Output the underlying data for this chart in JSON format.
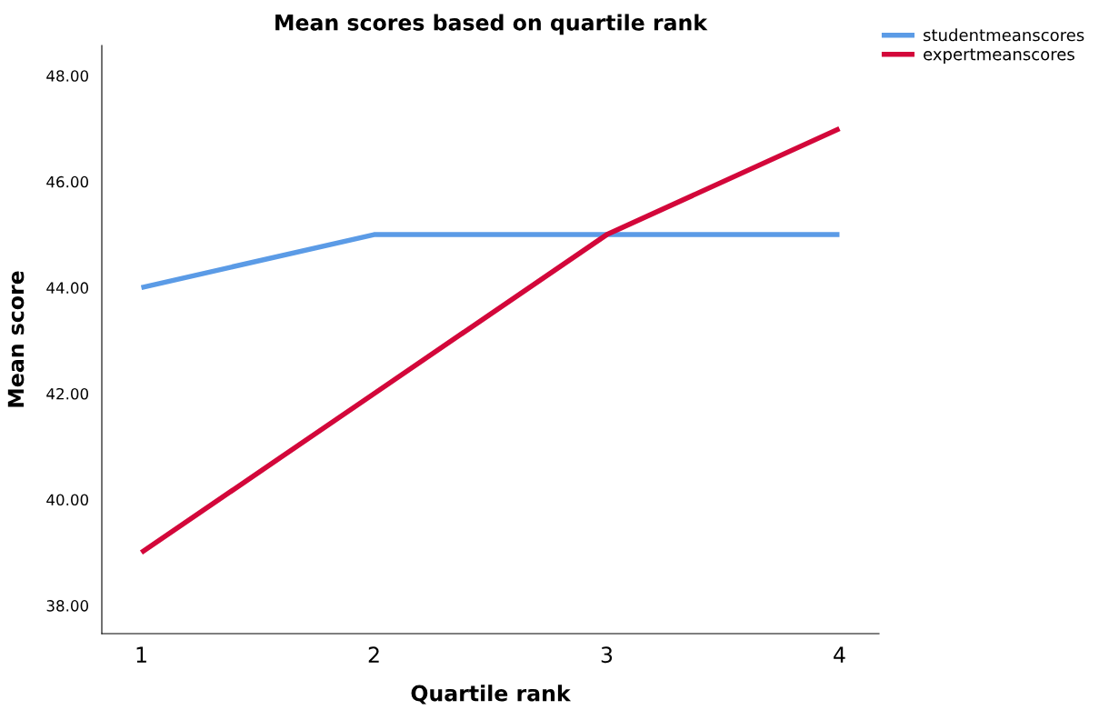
{
  "chart_data": {
    "type": "line",
    "title": "Mean scores based on quartile rank",
    "xlabel": "Quartile rank",
    "ylabel": "Mean score",
    "x": [
      1,
      2,
      3,
      4
    ],
    "series": [
      {
        "name": "studentmeanscores",
        "color": "#5b9be6",
        "values": [
          44,
          45,
          45,
          45
        ]
      },
      {
        "name": "expertmeanscores",
        "color": "#d3073a",
        "values": [
          39,
          42,
          45,
          47
        ]
      }
    ],
    "xlim": [
      0.83,
      4.17
    ],
    "xticks": [
      1,
      2,
      3,
      4
    ],
    "ylim": [
      37.47,
      48.57
    ],
    "yticks": [
      {
        "value": 38,
        "label": "38.00"
      },
      {
        "value": 40,
        "label": "40.00"
      },
      {
        "value": 42,
        "label": "42.00"
      },
      {
        "value": 44,
        "label": "44.00"
      },
      {
        "value": 46,
        "label": "46.00"
      },
      {
        "value": 48,
        "label": "48.00"
      }
    ],
    "grid": false,
    "legend": "top right",
    "marker": "none",
    "line_style": "solid"
  }
}
